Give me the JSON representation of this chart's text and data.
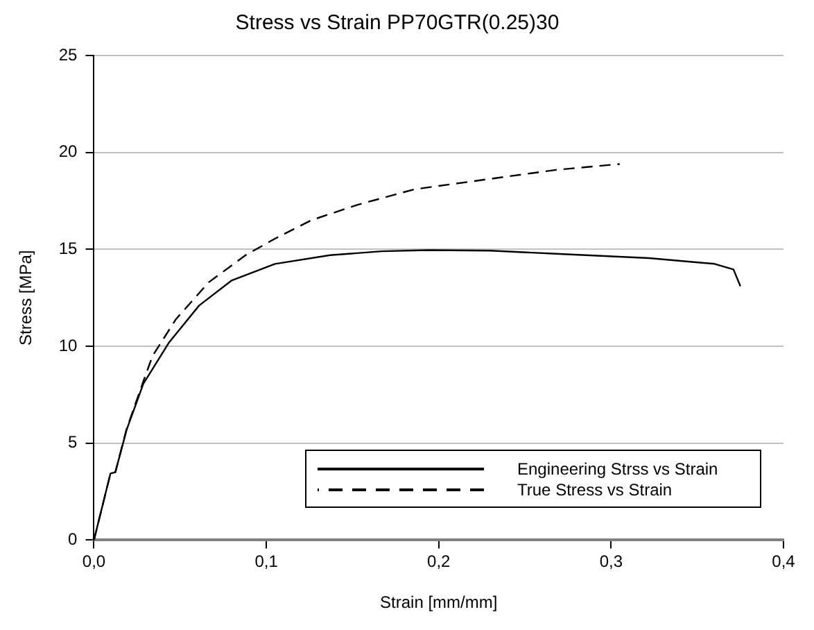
{
  "chart_data": {
    "type": "line",
    "title": "Stress vs Strain PP70GTR(0.25)30",
    "xlabel": "Strain [mm/mm]",
    "ylabel": "Stress [MPa]",
    "xlim": [
      0,
      0.4
    ],
    "xticks": [
      {
        "value": 0,
        "label": "0,0"
      },
      {
        "value": 0.1,
        "label": "0,1"
      },
      {
        "value": 0.2,
        "label": "0,2"
      },
      {
        "value": 0.3,
        "label": "0,3"
      },
      {
        "value": 0.4,
        "label": "0,4"
      }
    ],
    "ylim": [
      0,
      25
    ],
    "yticks": [
      0,
      5,
      10,
      15,
      20,
      25
    ],
    "grid": "y",
    "legend": "bottom right",
    "marker": "none",
    "series": [
      {
        "name": "Engineering Strss vs Strain",
        "color": "#000000",
        "line_style": "solid",
        "x": [
          0,
          0.0096,
          0.0124,
          0.019,
          0.0287,
          0.0436,
          0.061,
          0.08,
          0.105,
          0.137,
          0.167,
          0.194,
          0.23,
          0.268,
          0.322,
          0.36,
          0.371,
          0.375
        ],
        "values": [
          0,
          3.44,
          3.5,
          5.7,
          8.07,
          10.2,
          12.1,
          13.4,
          14.25,
          14.7,
          14.9,
          14.96,
          14.93,
          14.77,
          14.55,
          14.25,
          13.96,
          13.1
        ]
      },
      {
        "name": "True Stress vs Strain",
        "color": "#000000",
        "line_style": "dashed",
        "x": [
          0,
          0.0096,
          0.0124,
          0.019,
          0.0287,
          0.034,
          0.0476,
          0.0666,
          0.088,
          0.105,
          0.126,
          0.153,
          0.186,
          0.227,
          0.268,
          0.305
        ],
        "values": [
          0,
          3.44,
          3.5,
          5.75,
          8.2,
          9.5,
          11.4,
          13.3,
          14.7,
          15.55,
          16.5,
          17.3,
          18.1,
          18.6,
          19.1,
          19.4
        ]
      }
    ]
  }
}
